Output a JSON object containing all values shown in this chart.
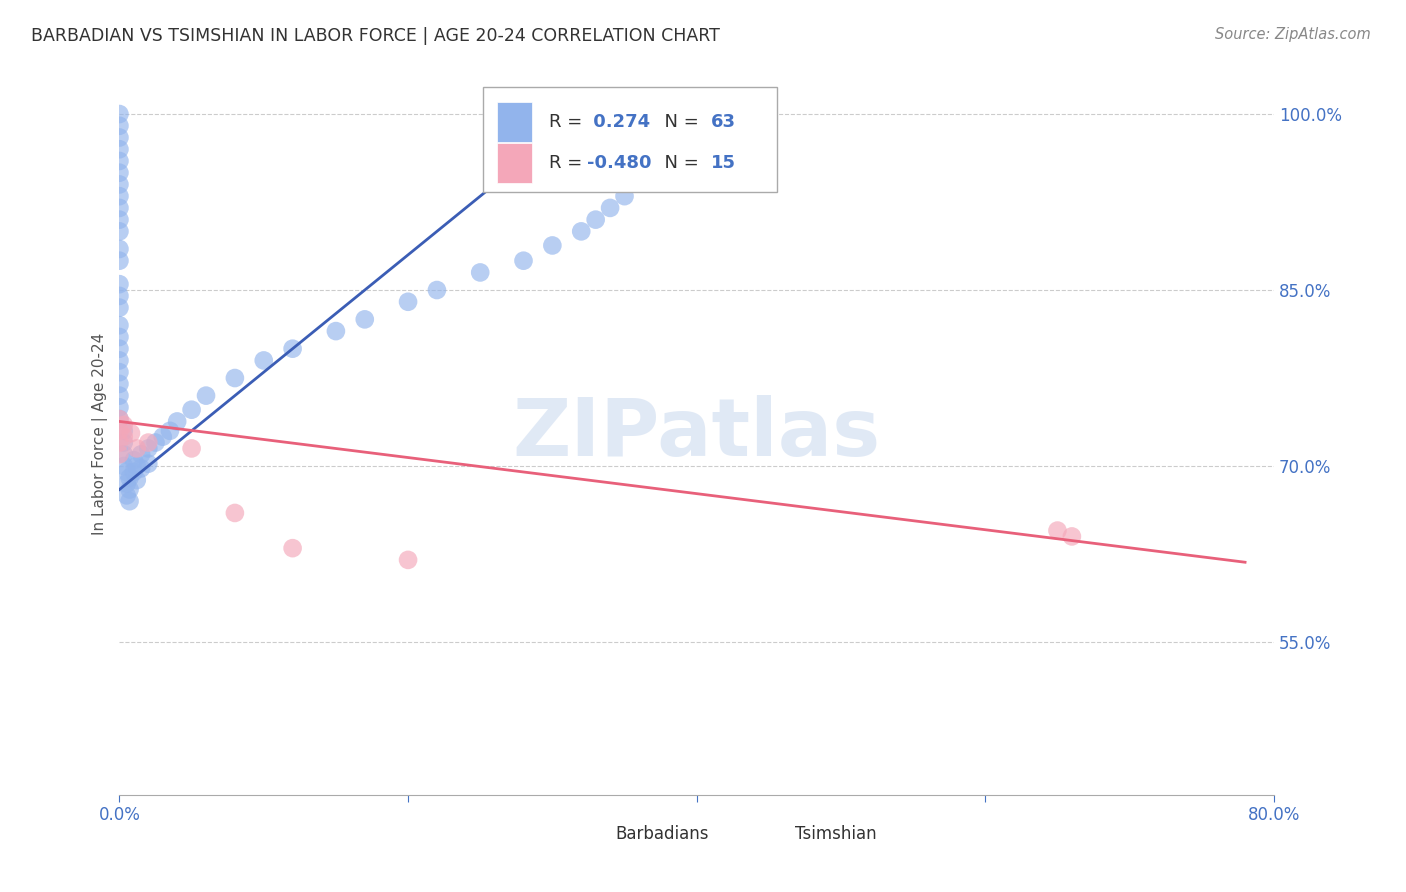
{
  "title": "BARBADIAN VS TSIMSHIAN IN LABOR FORCE | AGE 20-24 CORRELATION CHART",
  "source": "Source: ZipAtlas.com",
  "ylabel": "In Labor Force | Age 20-24",
  "watermark": "ZIPatlas",
  "xlim": [
    0.0,
    0.8
  ],
  "ylim": [
    0.42,
    1.035
  ],
  "xticks": [
    0.0,
    0.2,
    0.4,
    0.6,
    0.8
  ],
  "xtick_labels": [
    "0.0%",
    "",
    "",
    "",
    "80.0%"
  ],
  "yticks": [
    0.55,
    0.7,
    0.85,
    1.0
  ],
  "ytick_labels": [
    "55.0%",
    "70.0%",
    "85.0%",
    "100.0%"
  ],
  "blue_R": 0.274,
  "blue_N": 63,
  "pink_R": -0.48,
  "pink_N": 15,
  "blue_color": "#92B4EC",
  "pink_color": "#F4A7B9",
  "blue_line_color": "#3B5DB5",
  "pink_line_color": "#E8607A",
  "background_color": "#FFFFFF",
  "grid_color": "#CCCCCC",
  "title_color": "#333333",
  "axis_label_color": "#555555",
  "right_label_color": "#4472C4",
  "legend_text_blue_color": "#4472C4",
  "legend_text_dark_color": "#333333",
  "blue_points_x": [
    0.0,
    0.0,
    0.0,
    0.0,
    0.0,
    0.0,
    0.0,
    0.0,
    0.0,
    0.0,
    0.0,
    0.0,
    0.0,
    0.0,
    0.0,
    0.0,
    0.0,
    0.0,
    0.0,
    0.0,
    0.0,
    0.0,
    0.0,
    0.0,
    0.0,
    0.003,
    0.003,
    0.003,
    0.003,
    0.005,
    0.005,
    0.005,
    0.007,
    0.007,
    0.007,
    0.01,
    0.01,
    0.012,
    0.012,
    0.015,
    0.015,
    0.02,
    0.02,
    0.025,
    0.03,
    0.035,
    0.04,
    0.05,
    0.06,
    0.08,
    0.1,
    0.12,
    0.15,
    0.17,
    0.2,
    0.22,
    0.25,
    0.28,
    0.3,
    0.32,
    0.33,
    0.34,
    0.35
  ],
  "blue_points_y": [
    1.0,
    0.99,
    0.98,
    0.97,
    0.96,
    0.95,
    0.94,
    0.93,
    0.92,
    0.91,
    0.9,
    0.885,
    0.875,
    0.855,
    0.845,
    0.835,
    0.82,
    0.81,
    0.8,
    0.79,
    0.78,
    0.77,
    0.76,
    0.75,
    0.74,
    0.73,
    0.72,
    0.71,
    0.7,
    0.695,
    0.685,
    0.675,
    0.69,
    0.68,
    0.67,
    0.705,
    0.695,
    0.7,
    0.688,
    0.71,
    0.698,
    0.715,
    0.702,
    0.72,
    0.725,
    0.73,
    0.738,
    0.748,
    0.76,
    0.775,
    0.79,
    0.8,
    0.815,
    0.825,
    0.84,
    0.85,
    0.865,
    0.875,
    0.888,
    0.9,
    0.91,
    0.92,
    0.93
  ],
  "pink_points_x": [
    0.0,
    0.0,
    0.0,
    0.0,
    0.003,
    0.003,
    0.008,
    0.012,
    0.02,
    0.05,
    0.08,
    0.12,
    0.2,
    0.65,
    0.66
  ],
  "pink_points_y": [
    0.74,
    0.73,
    0.72,
    0.71,
    0.735,
    0.725,
    0.728,
    0.715,
    0.72,
    0.715,
    0.66,
    0.63,
    0.62,
    0.645,
    0.64
  ],
  "blue_trend_x": [
    0.0,
    0.32
  ],
  "blue_trend_y": [
    0.68,
    1.0
  ],
  "pink_trend_x": [
    0.0,
    0.78
  ],
  "pink_trend_y": [
    0.738,
    0.618
  ]
}
